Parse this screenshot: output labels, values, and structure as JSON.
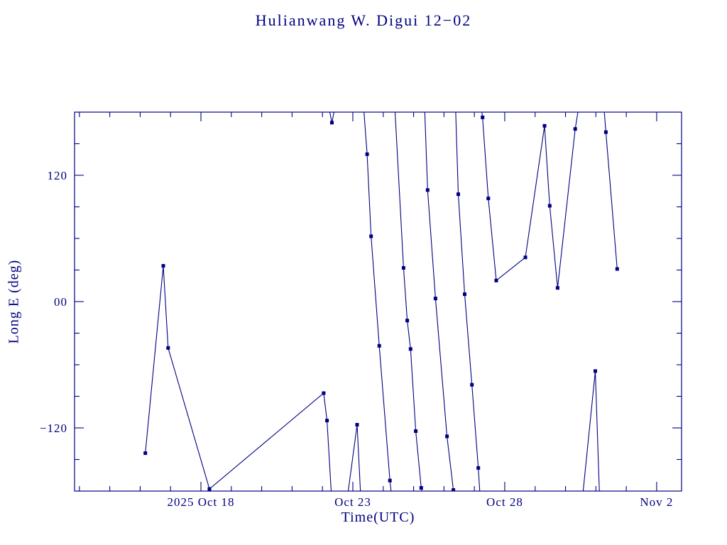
{
  "colors": {
    "accent": "#000080",
    "background": "#ffffff"
  },
  "chart_data": {
    "type": "line",
    "title": "Hulianwang W. Digui 12−02",
    "xlabel": "Time(UTC)",
    "ylabel": "Long E (deg)",
    "x_unit": "day of October 2025 (fractional; 33 = Nov 2)",
    "xlim": [
      13.84,
      33.82
    ],
    "ylim": [
      -180,
      180
    ],
    "xticks": [
      {
        "value": 18,
        "label": "2025 Oct 18"
      },
      {
        "value": 23,
        "label": "Oct 23"
      },
      {
        "value": 28,
        "label": "Oct 28"
      },
      {
        "value": 33,
        "label": "Nov 2"
      }
    ],
    "x_minor_step": 1,
    "yticks": [
      {
        "value": -120,
        "label": "−120"
      },
      {
        "value": 0,
        "label": "00"
      },
      {
        "value": 120,
        "label": "120"
      }
    ],
    "y_minor_step": 30,
    "grid": false,
    "legend": "none",
    "line_color": "#000080",
    "marker": "filled-square",
    "segments": [
      {
        "points": [
          [
            16.17,
            -144
          ],
          [
            16.76,
            34
          ],
          [
            16.92,
            -44
          ],
          [
            18.28,
            -178
          ],
          [
            22.04,
            -87
          ],
          [
            22.15,
            -113
          ],
          [
            22.3,
            -186
          ]
        ]
      },
      {
        "points": [
          [
            22.2,
            186
          ],
          [
            22.31,
            170
          ],
          [
            22.42,
            186
          ]
        ]
      },
      {
        "points": [
          [
            22.82,
            -186
          ],
          [
            23.14,
            -117
          ],
          [
            23.26,
            -186
          ]
        ]
      },
      {
        "points": [
          [
            23.35,
            186
          ],
          [
            23.47,
            140
          ],
          [
            23.6,
            62
          ],
          [
            23.87,
            -42
          ],
          [
            24.22,
            -170
          ],
          [
            24.28,
            -186
          ]
        ]
      },
      {
        "points": [
          [
            24.38,
            186
          ],
          [
            24.67,
            32
          ],
          [
            24.79,
            -18
          ],
          [
            24.9,
            -45
          ],
          [
            25.07,
            -123
          ],
          [
            25.25,
            -177
          ],
          [
            25.31,
            -186
          ]
        ]
      },
      {
        "points": [
          [
            25.36,
            186
          ],
          [
            25.46,
            106
          ],
          [
            25.72,
            3
          ],
          [
            26.1,
            -128
          ],
          [
            26.31,
            -179
          ]
        ]
      },
      {
        "points": [
          [
            26.38,
            186
          ],
          [
            26.47,
            102
          ],
          [
            26.68,
            7
          ],
          [
            26.92,
            -79
          ],
          [
            27.13,
            -158
          ],
          [
            27.19,
            -186
          ]
        ]
      },
      {
        "points": [
          [
            27.22,
            186
          ],
          [
            27.27,
            175
          ],
          [
            27.46,
            98
          ],
          [
            27.72,
            20
          ],
          [
            28.68,
            42
          ],
          [
            29.31,
            167
          ],
          [
            29.48,
            91
          ],
          [
            29.74,
            13
          ],
          [
            30.32,
            164
          ],
          [
            30.44,
            186
          ]
        ]
      },
      {
        "points": [
          [
            30.56,
            -186
          ],
          [
            30.98,
            -66
          ],
          [
            31.12,
            -186
          ]
        ]
      },
      {
        "points": [
          [
            31.26,
            186
          ],
          [
            31.33,
            161
          ],
          [
            31.7,
            31
          ]
        ]
      }
    ]
  }
}
